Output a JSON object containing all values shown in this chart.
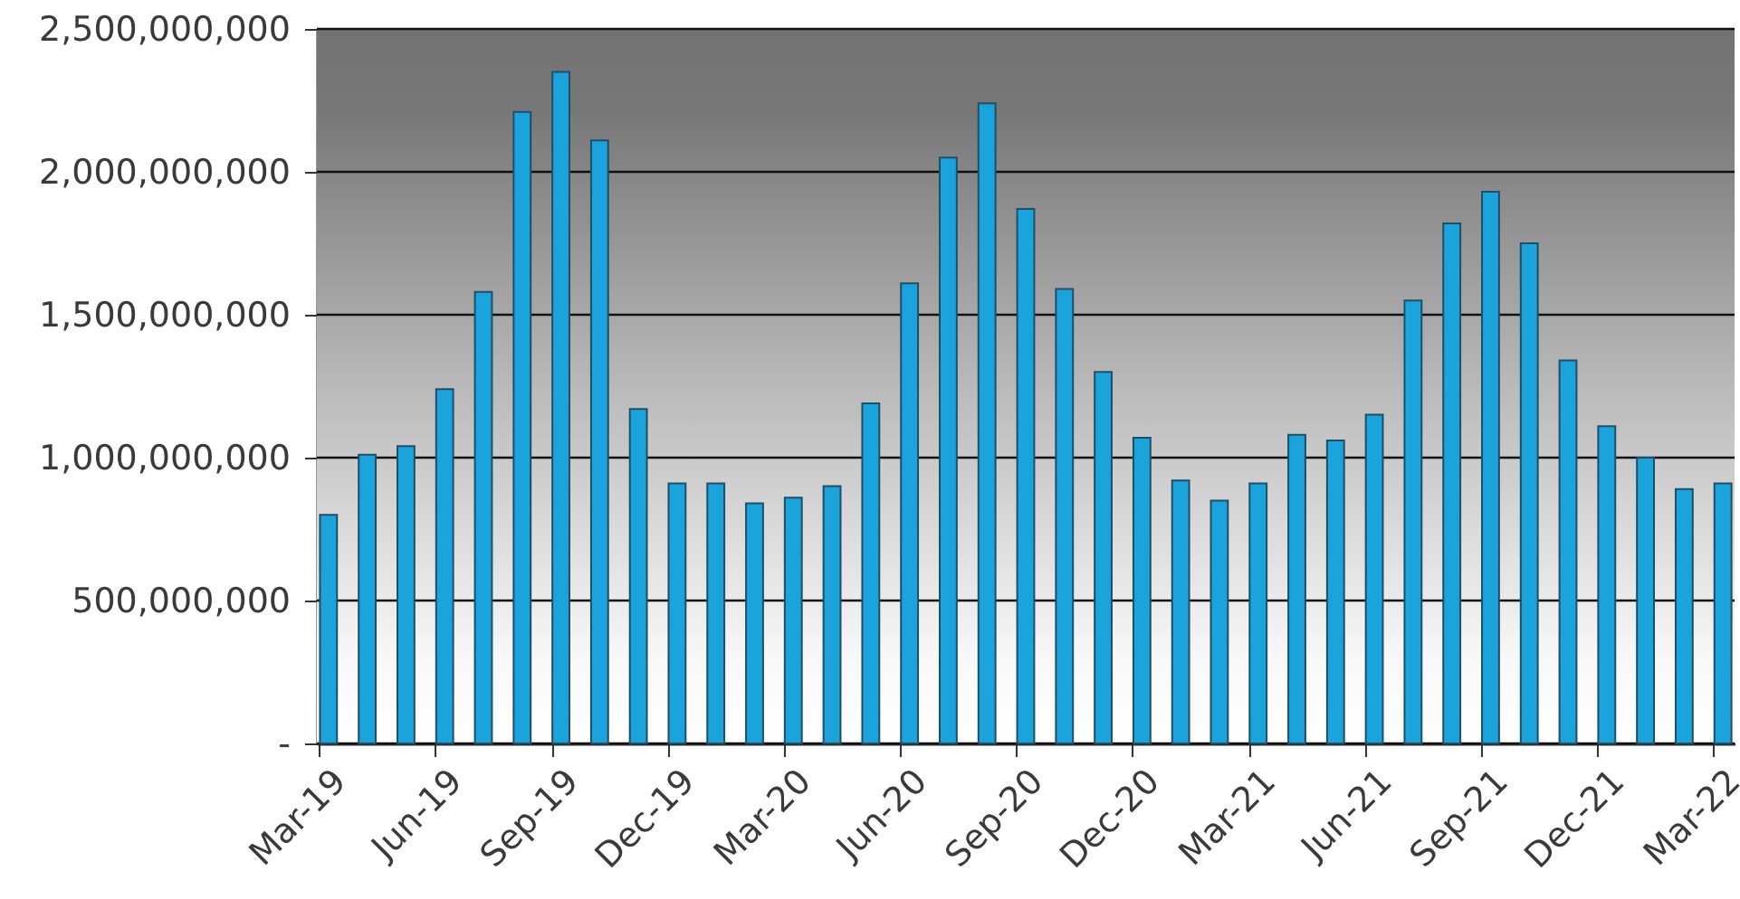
{
  "chart_data": {
    "type": "bar",
    "categories": [
      "Mar-19",
      null,
      null,
      "Jun-19",
      null,
      null,
      "Sep-19",
      null,
      null,
      "Dec-19",
      null,
      null,
      "Mar-20",
      null,
      null,
      "Jun-20",
      null,
      null,
      "Sep-20",
      null,
      null,
      "Dec-20",
      null,
      null,
      "Mar-21",
      null,
      null,
      "Jun-21",
      null,
      null,
      "Sep-21",
      null,
      null,
      "Dec-21",
      null,
      null,
      "Mar-22"
    ],
    "values": [
      800000000,
      1010000000,
      1040000000,
      1240000000,
      1580000000,
      2210000000,
      2350000000,
      2110000000,
      1170000000,
      910000000,
      910000000,
      840000000,
      860000000,
      900000000,
      1190000000,
      1610000000,
      2050000000,
      2240000000,
      1870000000,
      1590000000,
      1300000000,
      1070000000,
      920000000,
      850000000,
      910000000,
      1080000000,
      1060000000,
      1150000000,
      1550000000,
      1820000000,
      1930000000,
      1750000000,
      1340000000,
      1110000000,
      1000000000,
      890000000,
      910000000
    ],
    "color": "#1ba3dc",
    "ylim": [
      0,
      2500000000
    ],
    "yticks": [
      {
        "value": 0,
        "label": "-"
      },
      {
        "value": 500000000,
        "label": "500,000,000"
      },
      {
        "value": 1000000000,
        "label": "1,000,000,000"
      },
      {
        "value": 1500000000,
        "label": "1,500,000,000"
      },
      {
        "value": 2000000000,
        "label": "2,000,000,000"
      },
      {
        "value": 2500000000,
        "label": "2,500,000,000"
      }
    ],
    "grid": "y"
  }
}
